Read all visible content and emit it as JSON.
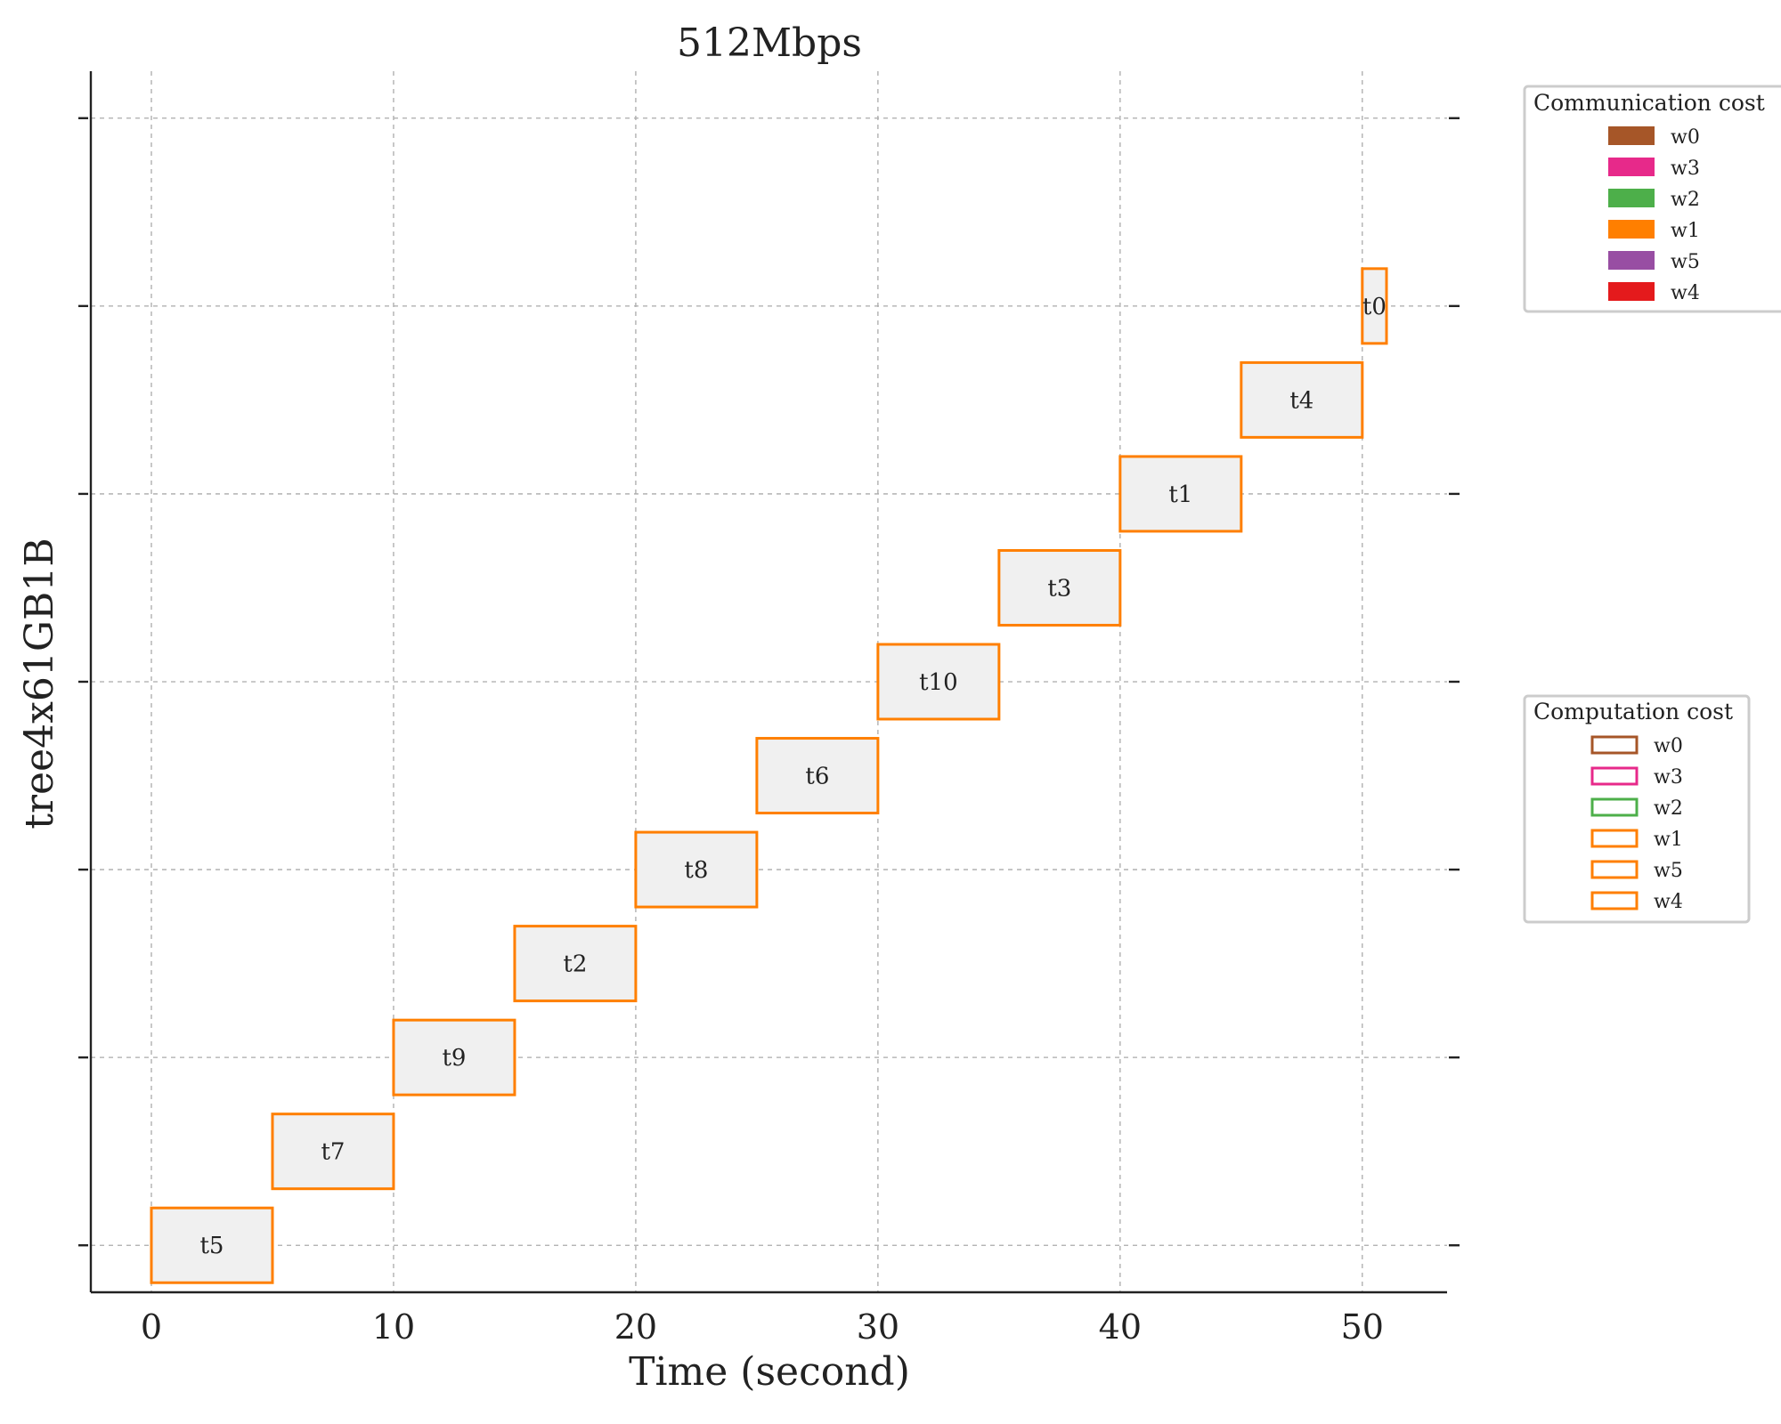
{
  "chart_data": {
    "type": "gantt",
    "title": "512Mbps",
    "xlabel": "Time (second)",
    "ylabel": "tree4x61GB1B",
    "xlim": [
      -2.5,
      53.5
    ],
    "xticks": [
      0,
      10,
      20,
      30,
      40,
      50
    ],
    "ylim": [
      -0.5,
      12.5
    ],
    "yticks": [
      0,
      2,
      4,
      6,
      8,
      10,
      12
    ],
    "grid": true,
    "task_fill_color": "#f0f0f0",
    "tasks": [
      {
        "name": "t5",
        "start": 0,
        "end": 5,
        "row": 0,
        "worker": "w4"
      },
      {
        "name": "t7",
        "start": 5,
        "end": 10,
        "row": 1,
        "worker": "w4"
      },
      {
        "name": "t9",
        "start": 10,
        "end": 15,
        "row": 2,
        "worker": "w4"
      },
      {
        "name": "t2",
        "start": 15,
        "end": 20,
        "row": 3,
        "worker": "w4"
      },
      {
        "name": "t8",
        "start": 20,
        "end": 25,
        "row": 4,
        "worker": "w4"
      },
      {
        "name": "t6",
        "start": 25,
        "end": 30,
        "row": 5,
        "worker": "w4"
      },
      {
        "name": "t10",
        "start": 30,
        "end": 35,
        "row": 6,
        "worker": "w4"
      },
      {
        "name": "t3",
        "start": 35,
        "end": 40,
        "row": 7,
        "worker": "w4"
      },
      {
        "name": "t1",
        "start": 40,
        "end": 45,
        "row": 8,
        "worker": "w4"
      },
      {
        "name": "t4",
        "start": 45,
        "end": 50,
        "row": 9,
        "worker": "w4"
      },
      {
        "name": "t0",
        "start": 50,
        "end": 51,
        "row": 10,
        "worker": "w4"
      }
    ],
    "worker_colors": {
      "w0": "#a65628",
      "w3": "#e7298a",
      "w2": "#4daf4a",
      "w1": "#ff7f00",
      "w5": "#984ea3",
      "w4": "#e41a1c"
    },
    "computation_edge_colors": {
      "w0": "#a65628",
      "w3": "#e7298a",
      "w2": "#4daf4a",
      "w1": "#ff7f00",
      "w5": "#ff7f00",
      "w4": "#ff7f00"
    },
    "legends": [
      {
        "title": "Communication cost",
        "style": "filled",
        "placement": "upper-right outside",
        "entries": [
          "w0",
          "w3",
          "w2",
          "w1",
          "w5",
          "w4"
        ]
      },
      {
        "title": "Computation cost",
        "style": "outlined",
        "placement": "center-right outside",
        "entries": [
          "w0",
          "w3",
          "w2",
          "w1",
          "w5",
          "w4"
        ]
      }
    ]
  }
}
